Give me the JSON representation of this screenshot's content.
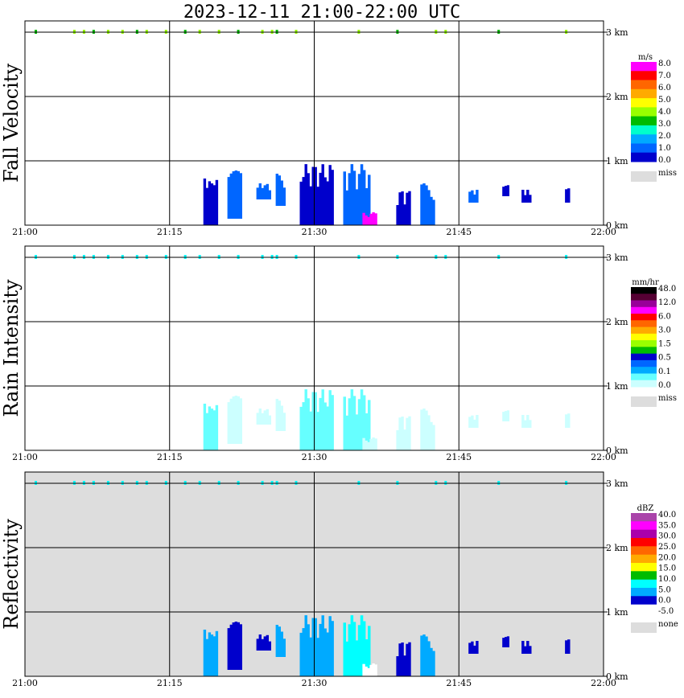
{
  "title": "2023-12-11   21:00-22:00 UTC",
  "x_ticks": [
    "21:00",
    "21:15",
    "21:30",
    "21:45",
    "22:00"
  ],
  "y_ticks": [
    "0 km",
    "1 km",
    "2 km",
    "3 km"
  ],
  "panels": [
    {
      "name": "fall-velocity",
      "ylabel": "Fall Velocity",
      "background": "#ffffff",
      "unit": "m/s",
      "legend_labels": [
        "8.0",
        "7.0",
        "6.0",
        "5.0",
        "4.0",
        "3.0",
        "2.0",
        "1.0",
        "0.0"
      ],
      "legend_colors": [
        "#ff00ff",
        "#ff0000",
        "#ff6600",
        "#ffaa00",
        "#ffff00",
        "#99ff00",
        "#00bb00",
        "#00ffcc",
        "#00aaff",
        "#0066ff",
        "#0000cc"
      ],
      "miss_label": "miss",
      "miss_color": "#dddddd"
    },
    {
      "name": "rain-intensity",
      "ylabel": "Rain Intensity",
      "background": "#ffffff",
      "unit": "mm/hr",
      "legend_labels": [
        "48.0",
        "12.0",
        "6.0",
        "3.0",
        "1.5",
        "0.5",
        "0.1",
        "0.0"
      ],
      "legend_colors": [
        "#000000",
        "#550033",
        "#990099",
        "#ff00ff",
        "#ff0000",
        "#ff6600",
        "#ffaa00",
        "#ffff00",
        "#99ff00",
        "#00bb00",
        "#0000cc",
        "#0066ff",
        "#00aaff",
        "#66ffff",
        "#ccffff"
      ],
      "miss_label": "miss",
      "miss_color": "#dddddd"
    },
    {
      "name": "reflectivity",
      "ylabel": "Reflectivity",
      "background": "#dddddd",
      "unit": "dBZ",
      "legend_labels": [
        "40.0",
        "35.0",
        "30.0",
        "25.0",
        "20.0",
        "15.0",
        "10.0",
        "5.0",
        "0.0",
        "-5.0"
      ],
      "legend_colors": [
        "#aa44aa",
        "#ff00ff",
        "#aa00aa",
        "#ff0000",
        "#ff6600",
        "#ffaa00",
        "#ffff00",
        "#00bb00",
        "#00ffff",
        "#00aaff",
        "#0000cc",
        "#ffffff"
      ],
      "miss_label": "none",
      "miss_color": "#dddddd"
    }
  ],
  "chart_data": {
    "type": "heatmap",
    "x_range": [
      "21:00",
      "22:00"
    ],
    "y_range_km": [
      0,
      3.5
    ],
    "grid": true,
    "note_colorscale": "time-height cross sections of fall velocity, rain intensity and radar reflectivity",
    "echo_clusters": [
      {
        "t0": 18.5,
        "t1": 20.0,
        "h0": 0.0,
        "h1": 0.75,
        "fv": "#0000cc",
        "ri": "#66ffff",
        "dbz": "#00aaff"
      },
      {
        "t0": 21.0,
        "t1": 22.5,
        "h0": 0.1,
        "h1": 0.85,
        "fv": "#0066ff",
        "ri": "#ccffff",
        "dbz": "#0000cc"
      },
      {
        "t0": 24.0,
        "t1": 25.5,
        "h0": 0.4,
        "h1": 0.65,
        "fv": "#0066ff",
        "ri": "#ccffff",
        "dbz": "#0000cc"
      },
      {
        "t0": 26.0,
        "t1": 27.0,
        "h0": 0.3,
        "h1": 0.8,
        "fv": "#0066ff",
        "ri": "#ccffff",
        "dbz": "#00aaff"
      },
      {
        "t0": 28.5,
        "t1": 32.0,
        "h0": 0.0,
        "h1": 0.95,
        "fv": "#0000cc",
        "ri": "#66ffff",
        "dbz": "#00aaff"
      },
      {
        "t0": 33.0,
        "t1": 35.8,
        "h0": 0.0,
        "h1": 0.95,
        "fv": "#0066ff",
        "ri": "#66ffff",
        "dbz": "#00ffff"
      },
      {
        "t0": 35.0,
        "t1": 36.5,
        "h0": 0.0,
        "h1": 0.2,
        "fv": "#ff00ff",
        "ri": "#ccffff",
        "dbz": "#ffffff"
      },
      {
        "t0": 38.5,
        "t1": 40.0,
        "h0": 0.0,
        "h1": 0.55,
        "fv": "#0000cc",
        "ri": "#ccffff",
        "dbz": "#0000cc"
      },
      {
        "t0": 41.0,
        "t1": 42.5,
        "h0": 0.0,
        "h1": 0.65,
        "fv": "#0066ff",
        "ri": "#ccffff",
        "dbz": "#00aaff"
      },
      {
        "t0": 46.0,
        "t1": 47.0,
        "h0": 0.35,
        "h1": 0.55,
        "fv": "#0066ff",
        "ri": "#ccffff",
        "dbz": "#0000cc"
      },
      {
        "t0": 49.5,
        "t1": 50.2,
        "h0": 0.45,
        "h1": 0.65,
        "fv": "#0000cc",
        "ri": "#ccffff",
        "dbz": "#0000cc"
      },
      {
        "t0": 51.5,
        "t1": 52.5,
        "h0": 0.35,
        "h1": 0.55,
        "fv": "#0000cc",
        "ri": "#ccffff",
        "dbz": "#0000cc"
      },
      {
        "t0": 56.0,
        "t1": 56.5,
        "h0": 0.35,
        "h1": 0.65,
        "fv": "#0000cc",
        "ri": "#ccffff",
        "dbz": "#0000cc"
      }
    ],
    "top_speckles_min": [
      1.0,
      5.0,
      6.0,
      7.0,
      8.5,
      10.0,
      11.5,
      12.5,
      14.5,
      16.5,
      18.0,
      20.0,
      22.0,
      24.5,
      25.5,
      26.0,
      28.0,
      34.5,
      38.5,
      42.5,
      43.5,
      49.0,
      56.0
    ]
  }
}
